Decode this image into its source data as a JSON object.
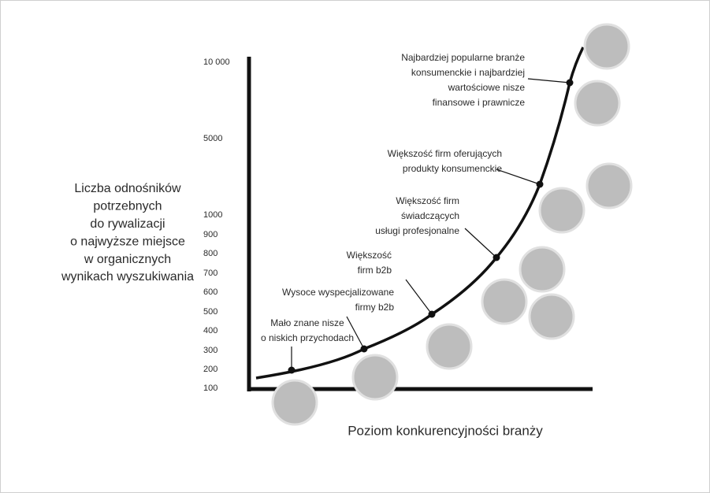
{
  "y_axis": {
    "title_lines": [
      "Liczba odnośników",
      "potrzebnych",
      "do rywalizacji",
      "o najwyższe miejsce",
      "w organicznych",
      "wynikach wyszukiwania"
    ],
    "labels": [
      "10 000",
      "5000",
      "1000",
      "900",
      "800",
      "700",
      "600",
      "500",
      "400",
      "300",
      "200",
      "100"
    ]
  },
  "x_axis": {
    "title": "Poziom konkurencyjności branży"
  },
  "annotations": [
    {
      "lines": [
        "Mało znane nisze",
        "o niskich przychodach"
      ]
    },
    {
      "lines": [
        "Wysoce wyspecjalizowane",
        "firmy b2b"
      ]
    },
    {
      "lines": [
        "Większość",
        "firm b2b"
      ]
    },
    {
      "lines": [
        "Większość firm",
        "świadczących",
        "usługi profesjonalne"
      ]
    },
    {
      "lines": [
        "Większość firm oferujących",
        "produkty konsumenckie"
      ]
    },
    {
      "lines": [
        "Najbardziej popularne branże",
        "konsumenckie i najbardziej",
        "wartościowe nisze",
        "finansowe i prawnicze"
      ]
    }
  ]
}
